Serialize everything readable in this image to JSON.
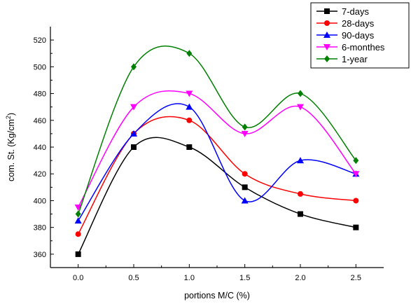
{
  "chart_data": {
    "type": "line",
    "title": "",
    "xlabel": "portions M/C (%)",
    "ylabel": "com. St. (Kg/cm²)",
    "xlim": [
      -0.25,
      2.75
    ],
    "ylim": [
      350,
      530
    ],
    "x_ticks": [
      "0.0",
      "0.5",
      "1.0",
      "1.5",
      "2.0",
      "2.5"
    ],
    "y_ticks": [
      "360",
      "380",
      "400",
      "420",
      "440",
      "460",
      "480",
      "500",
      "520"
    ],
    "grid": false,
    "legend_position": "top-right",
    "smooth": true,
    "x": [
      0.0,
      0.5,
      1.0,
      1.5,
      2.0,
      2.5
    ],
    "series": [
      {
        "name": "7-days",
        "color": "#000000",
        "marker": "square",
        "values": [
          360,
          440,
          440,
          410,
          390,
          380
        ]
      },
      {
        "name": "28-days",
        "color": "#ff0000",
        "marker": "circle",
        "values": [
          375,
          450,
          460,
          420,
          405,
          400
        ]
      },
      {
        "name": "90-days",
        "color": "#0000ff",
        "marker": "triangle",
        "values": [
          385,
          450,
          470,
          400,
          430,
          420
        ]
      },
      {
        "name": "6-monthes",
        "color": "#ff00ff",
        "marker": "triangle-down",
        "values": [
          395,
          470,
          480,
          450,
          470,
          420
        ]
      },
      {
        "name": "1-year",
        "color": "#008000",
        "marker": "diamond",
        "values": [
          390,
          500,
          510,
          455,
          480,
          430
        ]
      }
    ]
  }
}
